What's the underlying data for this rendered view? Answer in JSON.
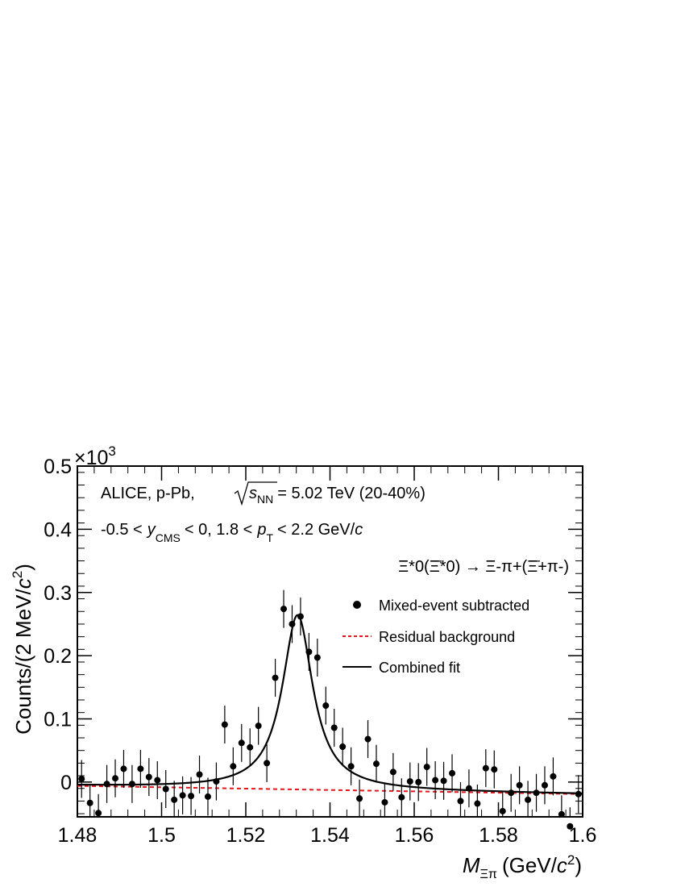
{
  "chart_data": {
    "type": "scatter",
    "title": "",
    "annotations": {
      "experiment": "ALICE, p-Pb,",
      "energy_sym": "s",
      "energy_sub": "NN",
      "energy_rest": "= 5.02 TeV (20-40%)",
      "rapidity_pre": "-0.5 <",
      "rapidity_var": "y",
      "rapidity_sub": "CMS",
      "rapidity_mid": "< 0, 1.8 <",
      "pt_var": "p",
      "pt_sub": "T",
      "pt_mid": "< 2.2 GeV/",
      "pt_unit": "c",
      "decay": "Ξ*0(Ξ̄*0) → Ξ-π+(Ξ̄+π-)"
    },
    "exponent_label": "×10",
    "exponent_power": "3",
    "ylabel_text": "Counts/(2 MeV/",
    "ylabel_c": "c",
    "ylabel_pow": "2",
    "ylabel_close": ")",
    "xlabel_var": "M",
    "xlabel_sub": "Ξπ",
    "xlabel_text": "(GeV/",
    "xlabel_c": "c",
    "xlabel_pow": "2",
    "xlabel_close": ")",
    "xlim": [
      1.48,
      1.6
    ],
    "ylim": [
      -0.055,
      0.5
    ],
    "x_ticks": [
      "1.48",
      "1.5",
      "1.52",
      "1.54",
      "1.56",
      "1.58",
      "1.6"
    ],
    "x_tick_values": [
      1.48,
      1.5,
      1.52,
      1.54,
      1.56,
      1.58,
      1.6
    ],
    "y_ticks": [
      "0",
      "0.1",
      "0.2",
      "0.3",
      "0.4",
      "0.5"
    ],
    "y_tick_values": [
      0,
      0.1,
      0.2,
      0.3,
      0.4,
      0.5
    ],
    "legend": {
      "placement": "right",
      "entries": [
        {
          "label": "Mixed-event subtracted",
          "style": "marker"
        },
        {
          "label": "Residual background",
          "style": "dashed",
          "color": "#e8141a"
        },
        {
          "label": "Combined fit",
          "style": "solid",
          "color": "#000000"
        }
      ]
    },
    "series": [
      {
        "name": "Mixed-event subtracted",
        "x": [
          1.481,
          1.483,
          1.485,
          1.487,
          1.489,
          1.491,
          1.493,
          1.495,
          1.497,
          1.499,
          1.501,
          1.503,
          1.505,
          1.507,
          1.509,
          1.511,
          1.513,
          1.515,
          1.517,
          1.519,
          1.521,
          1.523,
          1.525,
          1.527,
          1.529,
          1.531,
          1.533,
          1.535,
          1.537,
          1.539,
          1.541,
          1.543,
          1.545,
          1.547,
          1.549,
          1.551,
          1.553,
          1.555,
          1.557,
          1.559,
          1.561,
          1.563,
          1.565,
          1.567,
          1.569,
          1.571,
          1.573,
          1.575,
          1.577,
          1.579,
          1.581,
          1.583,
          1.585,
          1.587,
          1.589,
          1.591,
          1.593,
          1.595,
          1.597,
          1.599
        ],
        "y": [
          0.005,
          -0.033,
          -0.049,
          -0.003,
          0.006,
          0.021,
          -0.003,
          0.021,
          0.008,
          0.003,
          -0.011,
          -0.028,
          -0.021,
          -0.022,
          0.012,
          -0.023,
          0.001,
          0.091,
          0.025,
          0.062,
          0.055,
          0.089,
          0.03,
          0.165,
          0.274,
          0.25,
          0.262,
          0.206,
          0.197,
          0.121,
          0.086,
          0.056,
          0.025,
          -0.026,
          0.068,
          0.029,
          -0.032,
          0.016,
          -0.024,
          0.001,
          0.0,
          0.024,
          0.003,
          0.002,
          0.014,
          -0.03,
          -0.01,
          -0.034,
          0.022,
          0.02,
          -0.046,
          -0.017,
          -0.005,
          -0.028,
          -0.017,
          -0.005,
          0.009,
          -0.051,
          -0.07,
          -0.019
        ],
        "yerr": 0.03
      }
    ],
    "fit": {
      "background": {
        "intercept_at_1_48": -0.006,
        "value_at_1_6": -0.019
      },
      "peak": {
        "mean": 1.5323,
        "amplitude": 0.276,
        "width_gamma": 0.0088
      }
    },
    "colors": {
      "background_fit": "#e8141a",
      "combined_fit": "#000000",
      "points": "#000000"
    }
  }
}
